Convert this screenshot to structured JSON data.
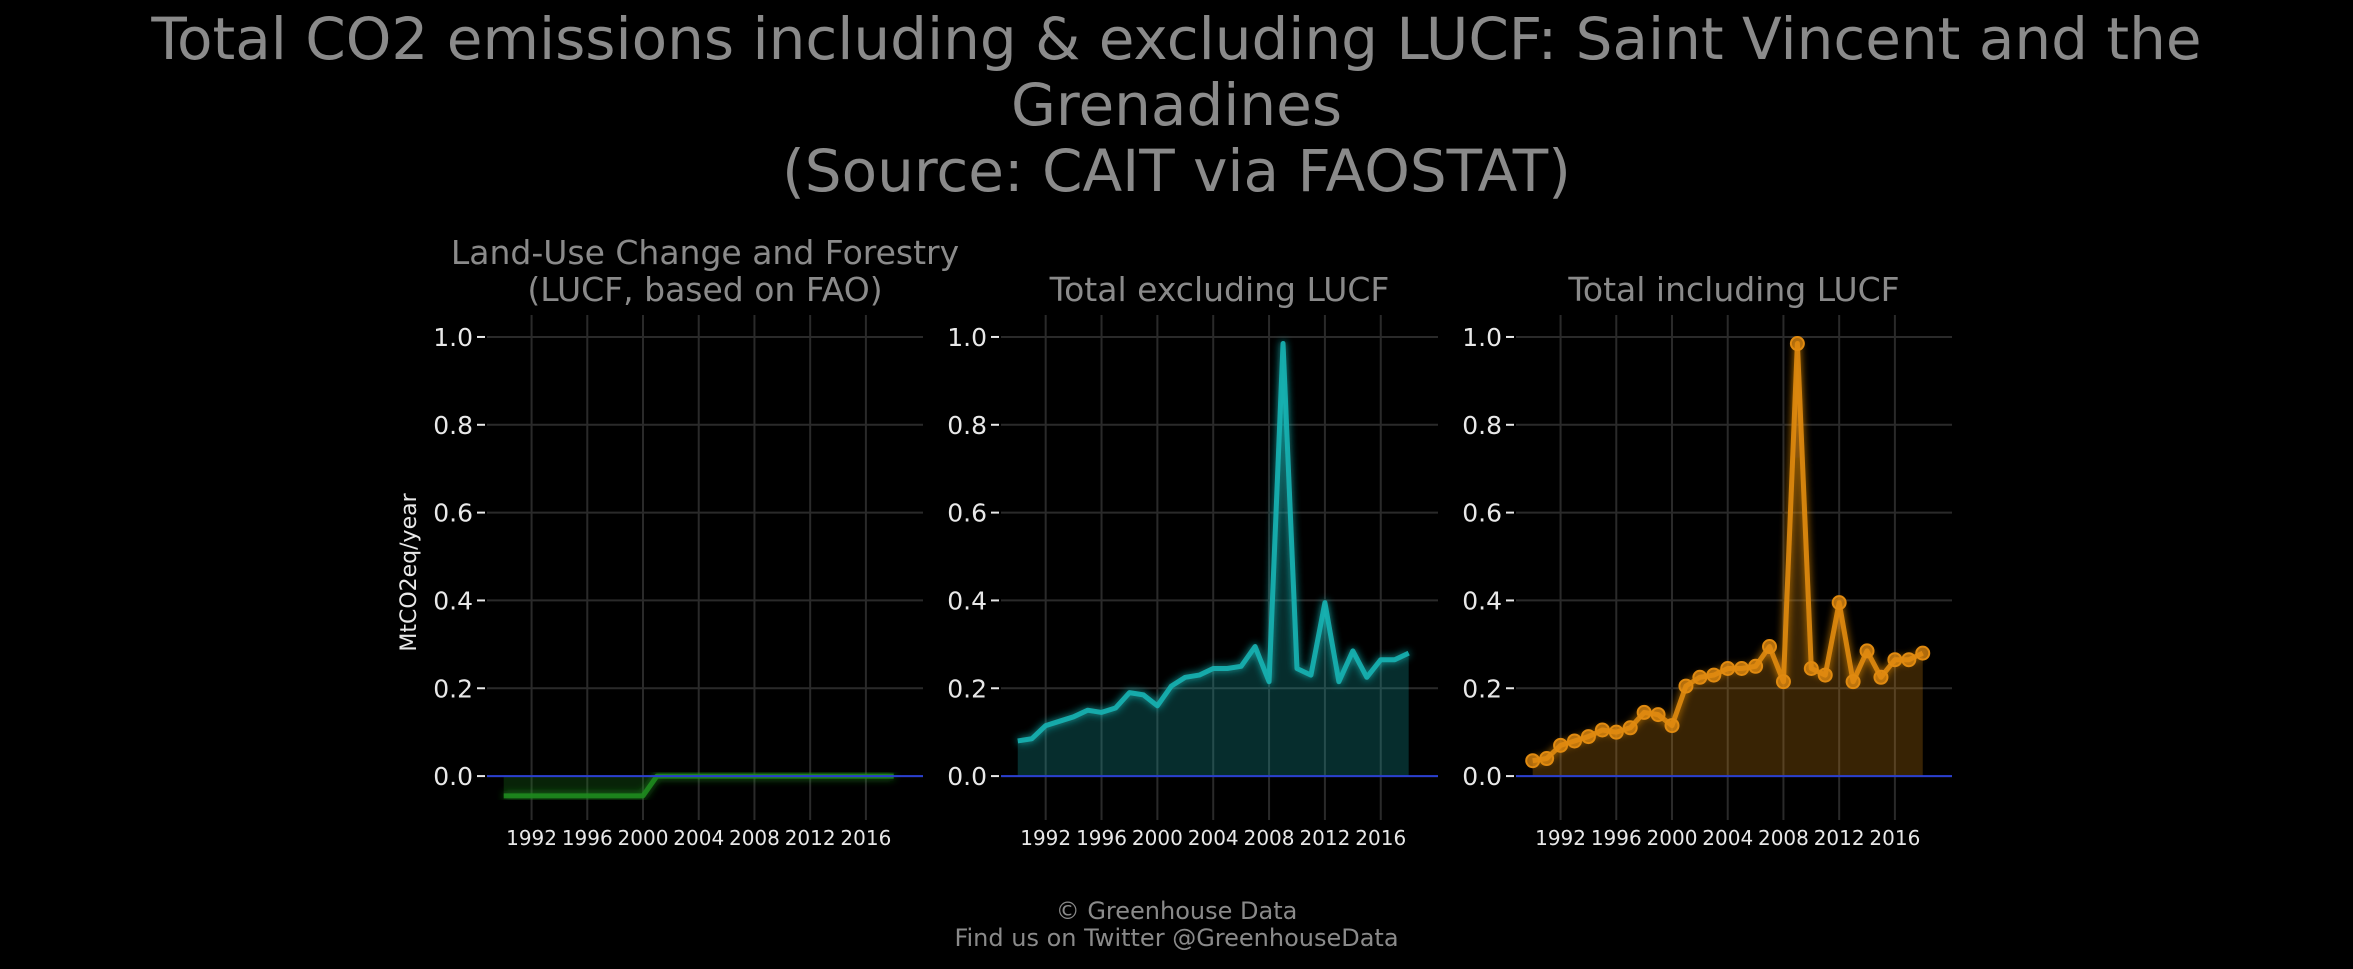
{
  "title": {
    "line1": "Total CO2 emissions including & excluding LUCF: Saint Vincent and the Grenadines",
    "line2": "(Source: CAIT via FAOSTAT)"
  },
  "footer": {
    "line1": "© Greenhouse Data",
    "line2": "Find us on Twitter @GreenhouseData"
  },
  "colors": {
    "lucf": "#1f8a1f",
    "excl": "#17b3b3",
    "incl": "#e08a10",
    "zero_line": "#2a3fd0",
    "grid": "#2a2a2a"
  },
  "chart_data": [
    {
      "type": "area",
      "title_lines": [
        "Land-Use Change and Forestry",
        "(LUCF, based on FAO)"
      ],
      "ylabel": "MtCO2eq/year",
      "ylim": [
        -0.1,
        1.05
      ],
      "yticks": [
        0.0,
        0.2,
        0.4,
        0.6,
        0.8,
        1.0
      ],
      "xticks": [
        1992,
        1996,
        2000,
        2004,
        2008,
        2012,
        2016
      ],
      "grid": true,
      "x": [
        1990,
        1991,
        1992,
        1993,
        1994,
        1995,
        1996,
        1997,
        1998,
        1999,
        2000,
        2001,
        2002,
        2003,
        2004,
        2005,
        2006,
        2007,
        2008,
        2009,
        2010,
        2011,
        2012,
        2013,
        2014,
        2015,
        2016,
        2017,
        2018
      ],
      "values": [
        -0.045,
        -0.045,
        -0.045,
        -0.045,
        -0.045,
        -0.045,
        -0.045,
        -0.045,
        -0.045,
        -0.045,
        -0.045,
        0.0,
        0.0,
        0.0,
        0.0,
        0.0,
        0.0,
        0.0,
        0.0,
        0.0,
        0.0,
        0.0,
        0.0,
        0.0,
        0.0,
        0.0,
        0.0,
        0.0,
        0.0
      ],
      "markers": false
    },
    {
      "type": "area",
      "title_lines": [
        "Total excluding LUCF"
      ],
      "ylim": [
        -0.1,
        1.05
      ],
      "yticks": [
        0.0,
        0.2,
        0.4,
        0.6,
        0.8,
        1.0
      ],
      "xticks": [
        1992,
        1996,
        2000,
        2004,
        2008,
        2012,
        2016
      ],
      "grid": true,
      "x": [
        1990,
        1991,
        1992,
        1993,
        1994,
        1995,
        1996,
        1997,
        1998,
        1999,
        2000,
        2001,
        2002,
        2003,
        2004,
        2005,
        2006,
        2007,
        2008,
        2009,
        2010,
        2011,
        2012,
        2013,
        2014,
        2015,
        2016,
        2017,
        2018
      ],
      "values": [
        0.08,
        0.085,
        0.115,
        0.125,
        0.135,
        0.15,
        0.145,
        0.155,
        0.19,
        0.185,
        0.16,
        0.205,
        0.225,
        0.23,
        0.245,
        0.245,
        0.25,
        0.295,
        0.215,
        0.985,
        0.245,
        0.23,
        0.395,
        0.215,
        0.285,
        0.225,
        0.265,
        0.265,
        0.28
      ],
      "markers": false
    },
    {
      "type": "area",
      "title_lines": [
        "Total including LUCF"
      ],
      "ylim": [
        -0.1,
        1.05
      ],
      "yticks": [
        0.0,
        0.2,
        0.4,
        0.6,
        0.8,
        1.0
      ],
      "xticks": [
        1992,
        1996,
        2000,
        2004,
        2008,
        2012,
        2016
      ],
      "grid": true,
      "x": [
        1990,
        1991,
        1992,
        1993,
        1994,
        1995,
        1996,
        1997,
        1998,
        1999,
        2000,
        2001,
        2002,
        2003,
        2004,
        2005,
        2006,
        2007,
        2008,
        2009,
        2010,
        2011,
        2012,
        2013,
        2014,
        2015,
        2016,
        2017,
        2018
      ],
      "values": [
        0.035,
        0.04,
        0.07,
        0.08,
        0.09,
        0.105,
        0.1,
        0.11,
        0.145,
        0.14,
        0.115,
        0.205,
        0.225,
        0.23,
        0.245,
        0.245,
        0.25,
        0.295,
        0.215,
        0.985,
        0.245,
        0.23,
        0.395,
        0.215,
        0.285,
        0.225,
        0.265,
        0.265,
        0.28
      ],
      "markers": true
    }
  ]
}
